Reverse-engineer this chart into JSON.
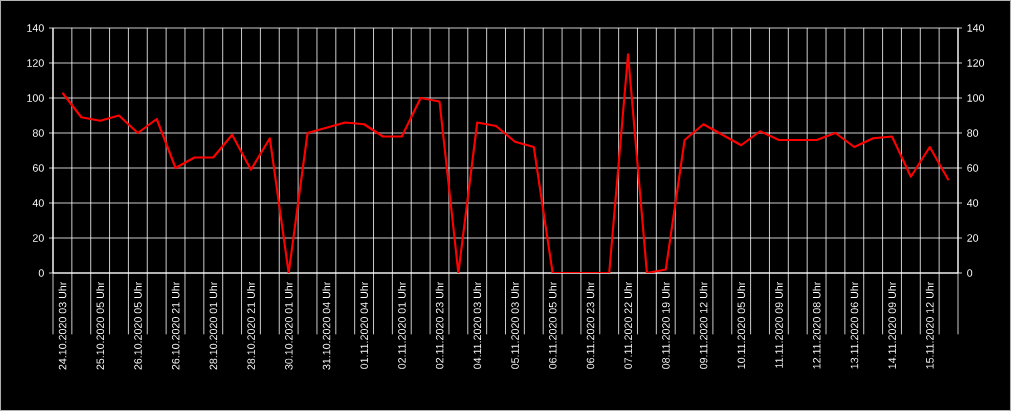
{
  "chart_data": {
    "type": "line",
    "categories": [
      "24.10.2020 03 Uhr",
      null,
      "25.10.2020 05 Uhr",
      null,
      "26.10.2020 05 Uhr",
      null,
      "26.10.2020 21 Uhr",
      null,
      "28.10.2020 01 Uhr",
      null,
      "28.10.2020 21 Uhr",
      null,
      "30.10.2020 01 Uhr",
      null,
      "31.10.2020 04 Uhr",
      null,
      "01.11.2020 04 Uhr",
      null,
      "02.11.2020 01 Uhr",
      null,
      "02.11.2020 23 Uhr",
      null,
      "04.11.2020 03 Uhr",
      null,
      "05.11.2020 03 Uhr",
      null,
      "06.11.2020 05 Uhr",
      null,
      "06.11.2020 23 Uhr",
      null,
      "07.11.2020 22 Uhr",
      null,
      "08.11.2020 19 Uhr",
      null,
      "09.11.2020 12 Uhr",
      null,
      "10.11.2020 05 Uhr",
      null,
      "11.11.2020 09 Uhr",
      null,
      "12.11.2020 08 Uhr",
      null,
      "13.11.2020 06 Uhr",
      null,
      "14.11.2020 09 Uhr",
      null,
      "15.11.2020 12 Uhr",
      null
    ],
    "values": [
      103,
      89,
      87,
      90,
      80,
      88,
      60,
      66,
      66,
      79,
      59,
      77,
      0,
      80,
      83,
      86,
      85,
      78,
      78,
      100,
      98,
      0,
      86,
      84,
      75,
      72,
      0,
      0,
      0,
      0,
      125,
      0,
      2,
      76,
      85,
      79,
      73,
      81,
      76,
      76,
      76,
      80,
      72,
      77,
      78,
      55,
      72,
      53
    ],
    "color": "#ff0000",
    "ylim": [
      0,
      140
    ],
    "yticks": [
      0,
      20,
      40,
      60,
      80,
      100,
      120,
      140
    ],
    "y2lim": [
      0,
      140
    ],
    "y2ticks": [
      0,
      20,
      40,
      60,
      80,
      100,
      120,
      140
    ],
    "grid": true
  }
}
